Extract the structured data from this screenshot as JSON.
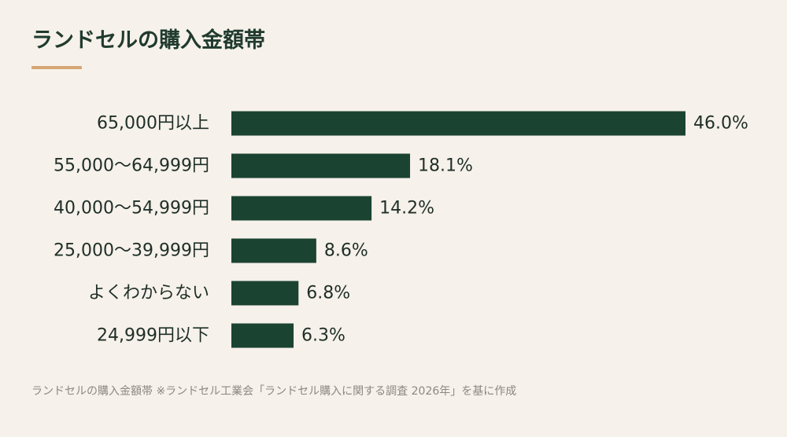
{
  "title": "ランドセルの購入金額帯",
  "source": "ランドセルの購入金額帯 ※ランドセル工業会「ランドセル購入に関する調査 2026年」を基に作成",
  "colors": {
    "background": "#f6f1ea",
    "bar": "#1b4332",
    "title": "#203a2e",
    "accent": "#d6a574",
    "label": "#1f2f28",
    "source": "#8d8780"
  },
  "chart_data": {
    "type": "bar",
    "orientation": "horizontal",
    "categories": [
      "65,000円以上",
      "55,000〜64,999円",
      "40,000〜54,999円",
      "25,000〜39,999円",
      "よくわからない",
      "24,999円以下"
    ],
    "values": [
      46.0,
      18.1,
      14.2,
      8.6,
      6.8,
      6.3
    ],
    "value_labels": [
      "46.0%",
      "18.1%",
      "14.2%",
      "8.6%",
      "6.8%",
      "6.3%"
    ],
    "unit": "%",
    "xlim": [
      0,
      46.0
    ],
    "grid": false,
    "legend": "none"
  }
}
